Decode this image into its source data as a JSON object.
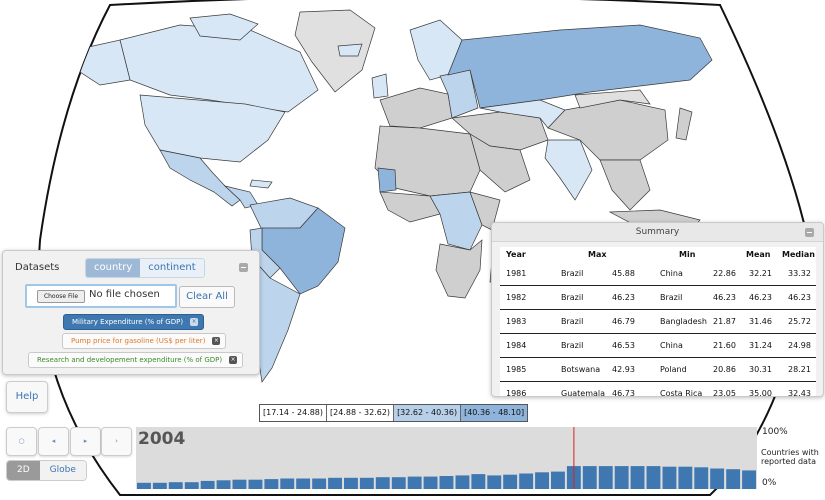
{
  "datasets_panel": {
    "title": "Datasets",
    "tabs": [
      {
        "label": "country",
        "active": true
      },
      {
        "label": "continent",
        "active": false
      }
    ],
    "choose_label": "Choose File",
    "file_label": "No file chosen",
    "clear_all": "Clear All",
    "datasets": [
      {
        "label": "Military Expenditure (% of GDP)",
        "color": "#3f78b0",
        "selected": true
      },
      {
        "label": "Pump price for gasoline (US$ per liter)",
        "color": "#e07a2b",
        "selected": false
      },
      {
        "label": "Research and developement expenditure (% of GDP)",
        "color": "#3b8a2a",
        "selected": false
      }
    ]
  },
  "summary": {
    "title": "Summary",
    "headers": {
      "year": "Year",
      "max": "Max",
      "min": "Min",
      "mean": "Mean",
      "median": "Median"
    },
    "rows": [
      {
        "year": "1981",
        "max_country": "Brazil",
        "max": "45.88",
        "min_country": "China",
        "min": "22.86",
        "mean": "32.21",
        "median": "33.32"
      },
      {
        "year": "1982",
        "max_country": "Brazil",
        "max": "46.23",
        "min_country": "Brazil",
        "min": "46.23",
        "mean": "46.23",
        "median": "46.23"
      },
      {
        "year": "1983",
        "max_country": "Brazil",
        "max": "46.79",
        "min_country": "Bangladesh",
        "min": "21.87",
        "mean": "31.46",
        "median": "25.72"
      },
      {
        "year": "1984",
        "max_country": "Brazil",
        "max": "46.53",
        "min_country": "China",
        "min": "21.60",
        "mean": "31.24",
        "median": "24.98"
      },
      {
        "year": "1985",
        "max_country": "Botswana",
        "max": "42.93",
        "min_country": "Poland",
        "min": "20.86",
        "mean": "30.31",
        "median": "28.21"
      },
      {
        "year": "1986",
        "max_country": "Guatemala",
        "max": "46.73",
        "min_country": "Costa Rica",
        "min": "23.05",
        "mean": "35.00",
        "median": "32.43"
      }
    ]
  },
  "help_label": "Help",
  "legend": [
    {
      "label": "[17.14 - 24.88)",
      "color": "#ffffff"
    },
    {
      "label": "[24.88 - 32.62)",
      "color": "#ffffff"
    },
    {
      "label": "[32.62 - 40.36)",
      "color": "#b7cfe8"
    },
    {
      "label": "[40.36 - 48.10]",
      "color": "#8fb4db"
    }
  ],
  "controls": {
    "reset": "○",
    "prev": "◂",
    "play": "▸",
    "next": "›"
  },
  "view_toggle": {
    "2d": "2D",
    "globe": "Globe"
  },
  "timeline": {
    "year": "2004",
    "top_pct": "100%",
    "bottom_pct": "0%",
    "note": "Countries with reported data",
    "bar_fractions": [
      0.1,
      0.1,
      0.11,
      0.11,
      0.13,
      0.14,
      0.15,
      0.15,
      0.16,
      0.17,
      0.17,
      0.17,
      0.18,
      0.18,
      0.18,
      0.19,
      0.19,
      0.2,
      0.2,
      0.21,
      0.22,
      0.24,
      0.22,
      0.23,
      0.25,
      0.27,
      0.28,
      0.37,
      0.37,
      0.37,
      0.37,
      0.37,
      0.37,
      0.36,
      0.36,
      0.35,
      0.33,
      0.32,
      0.3
    ],
    "selected_index": 27
  }
}
